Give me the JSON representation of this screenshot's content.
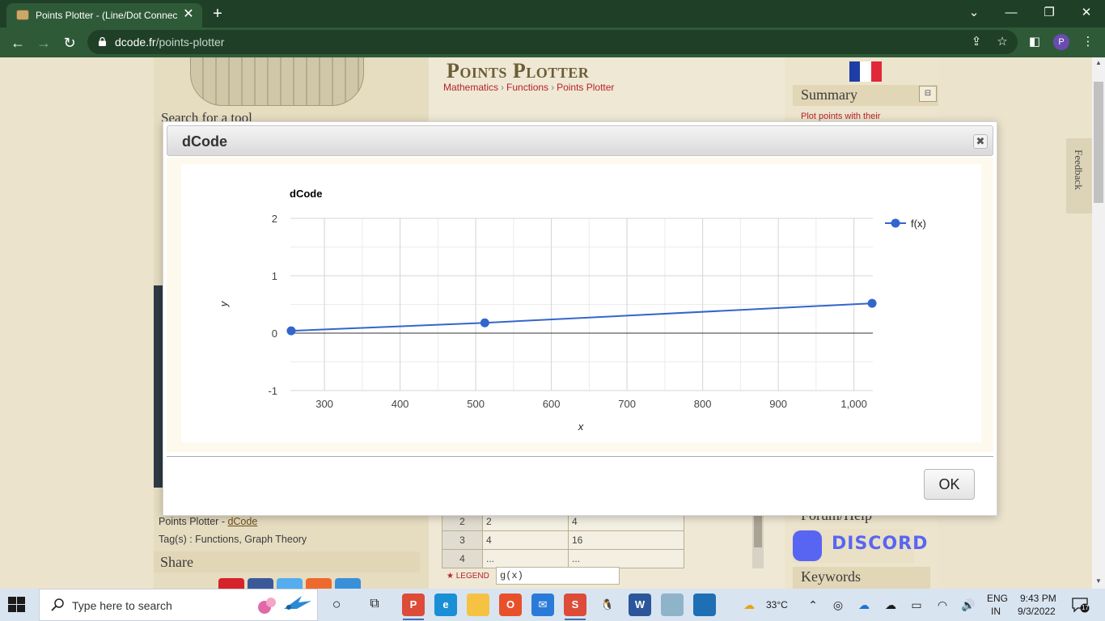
{
  "browser": {
    "tab_title": "Points Plotter - (Line/Dot Connec",
    "tab_close": "✕",
    "new_tab": "+",
    "url_host": "dcode.fr",
    "url_path": "/points-plotter",
    "profile_initial": "P",
    "window_controls": {
      "chevron": "⌄",
      "minimize": "—",
      "restore": "❐",
      "close": "✕"
    }
  },
  "page": {
    "title": "Points Plotter",
    "breadcrumbs": [
      "Mathematics",
      "Functions",
      "Points Plotter"
    ],
    "breadcrumb_sep": "›",
    "search_title": "Search for a tool",
    "summary_title": "Summary",
    "summary_item": "Plot points with their",
    "credit_prefix": "Points Plotter - ",
    "credit_link": "dCode",
    "tags": "Tag(s) : Functions, Graph Theory",
    "share_title": "Share",
    "forum_title": "Forum/Help",
    "discord_label": "DISCORD",
    "keywords_title": "Keywords",
    "feedback": "Feedback",
    "legend_label": "★ LEGEND",
    "legend_value": "g(x)",
    "table_rows": [
      {
        "idx": "2",
        "x": "2",
        "y": "4"
      },
      {
        "idx": "3",
        "x": "4",
        "y": "16"
      },
      {
        "idx": "4",
        "x": "...",
        "y": "..."
      }
    ],
    "flag_colors": [
      "#1e3ea6",
      "#ffffff",
      "#e0283a"
    ]
  },
  "dialog": {
    "title": "dCode",
    "close_label": "✖",
    "ok_label": "OK"
  },
  "chart_data": {
    "type": "line",
    "title": "dCode",
    "xlabel": "x",
    "ylabel": "y",
    "xlim": [
      255,
      1025
    ],
    "ylim": [
      -1,
      2
    ],
    "x_ticks": [
      300,
      400,
      500,
      600,
      700,
      800,
      900,
      1000
    ],
    "x_tick_labels": [
      "300",
      "400",
      "500",
      "600",
      "700",
      "800",
      "900",
      "1,000"
    ],
    "y_ticks": [
      -1,
      0,
      1,
      2
    ],
    "y_tick_labels": [
      "-1",
      "0",
      "1",
      "2"
    ],
    "grid": true,
    "legend_position": "right",
    "series": [
      {
        "name": "f(x)",
        "color": "#3366cc",
        "x": [
          256,
          512,
          1024
        ],
        "y": [
          0.04,
          0.18,
          0.52
        ]
      }
    ]
  },
  "taskbar": {
    "search_placeholder": "Type here to search",
    "weather": "33°C",
    "lang_top": "ENG",
    "lang_bottom": "IN",
    "time": "9:43 PM",
    "date": "9/3/2022",
    "notification_count": "17"
  }
}
